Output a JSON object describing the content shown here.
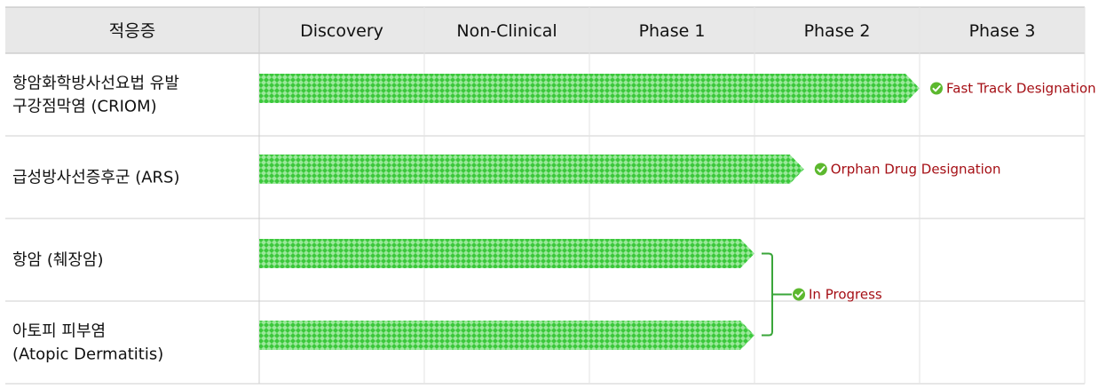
{
  "header": {
    "indication_label": "적응증",
    "phases": [
      "Discovery",
      "Non-Clinical",
      "Phase 1",
      "Phase 2",
      "Phase 3"
    ]
  },
  "colors": {
    "header_bg": "#e8e8e8",
    "bar_fill": "#3cc83c",
    "bar_pattern": "#9be89b",
    "check": "#5cb82e",
    "note_text": "#a50f15",
    "bracket": "#3aa63a",
    "grid": "#cfcfcf"
  },
  "rows": [
    {
      "lines": [
        "항암화학방사선요법 유발",
        "구강점막염 (CRIOM)"
      ],
      "progress_phase": 4.0,
      "note": "Fast Track Designation"
    },
    {
      "lines": [
        "급성방사선증후군 (ARS)"
      ],
      "progress_phase": 3.3,
      "note": "Orphan Drug Designation"
    },
    {
      "lines": [
        "항암 (췌장암)"
      ],
      "progress_phase": 3.0,
      "note": ""
    },
    {
      "lines": [
        "아토피 피부염",
        "(Atopic Dermatitis)"
      ],
      "progress_phase": 3.0,
      "note": ""
    }
  ],
  "group_note": {
    "rows": [
      2,
      3
    ],
    "text": "In Progress",
    "icon": "check-circle-icon"
  }
}
